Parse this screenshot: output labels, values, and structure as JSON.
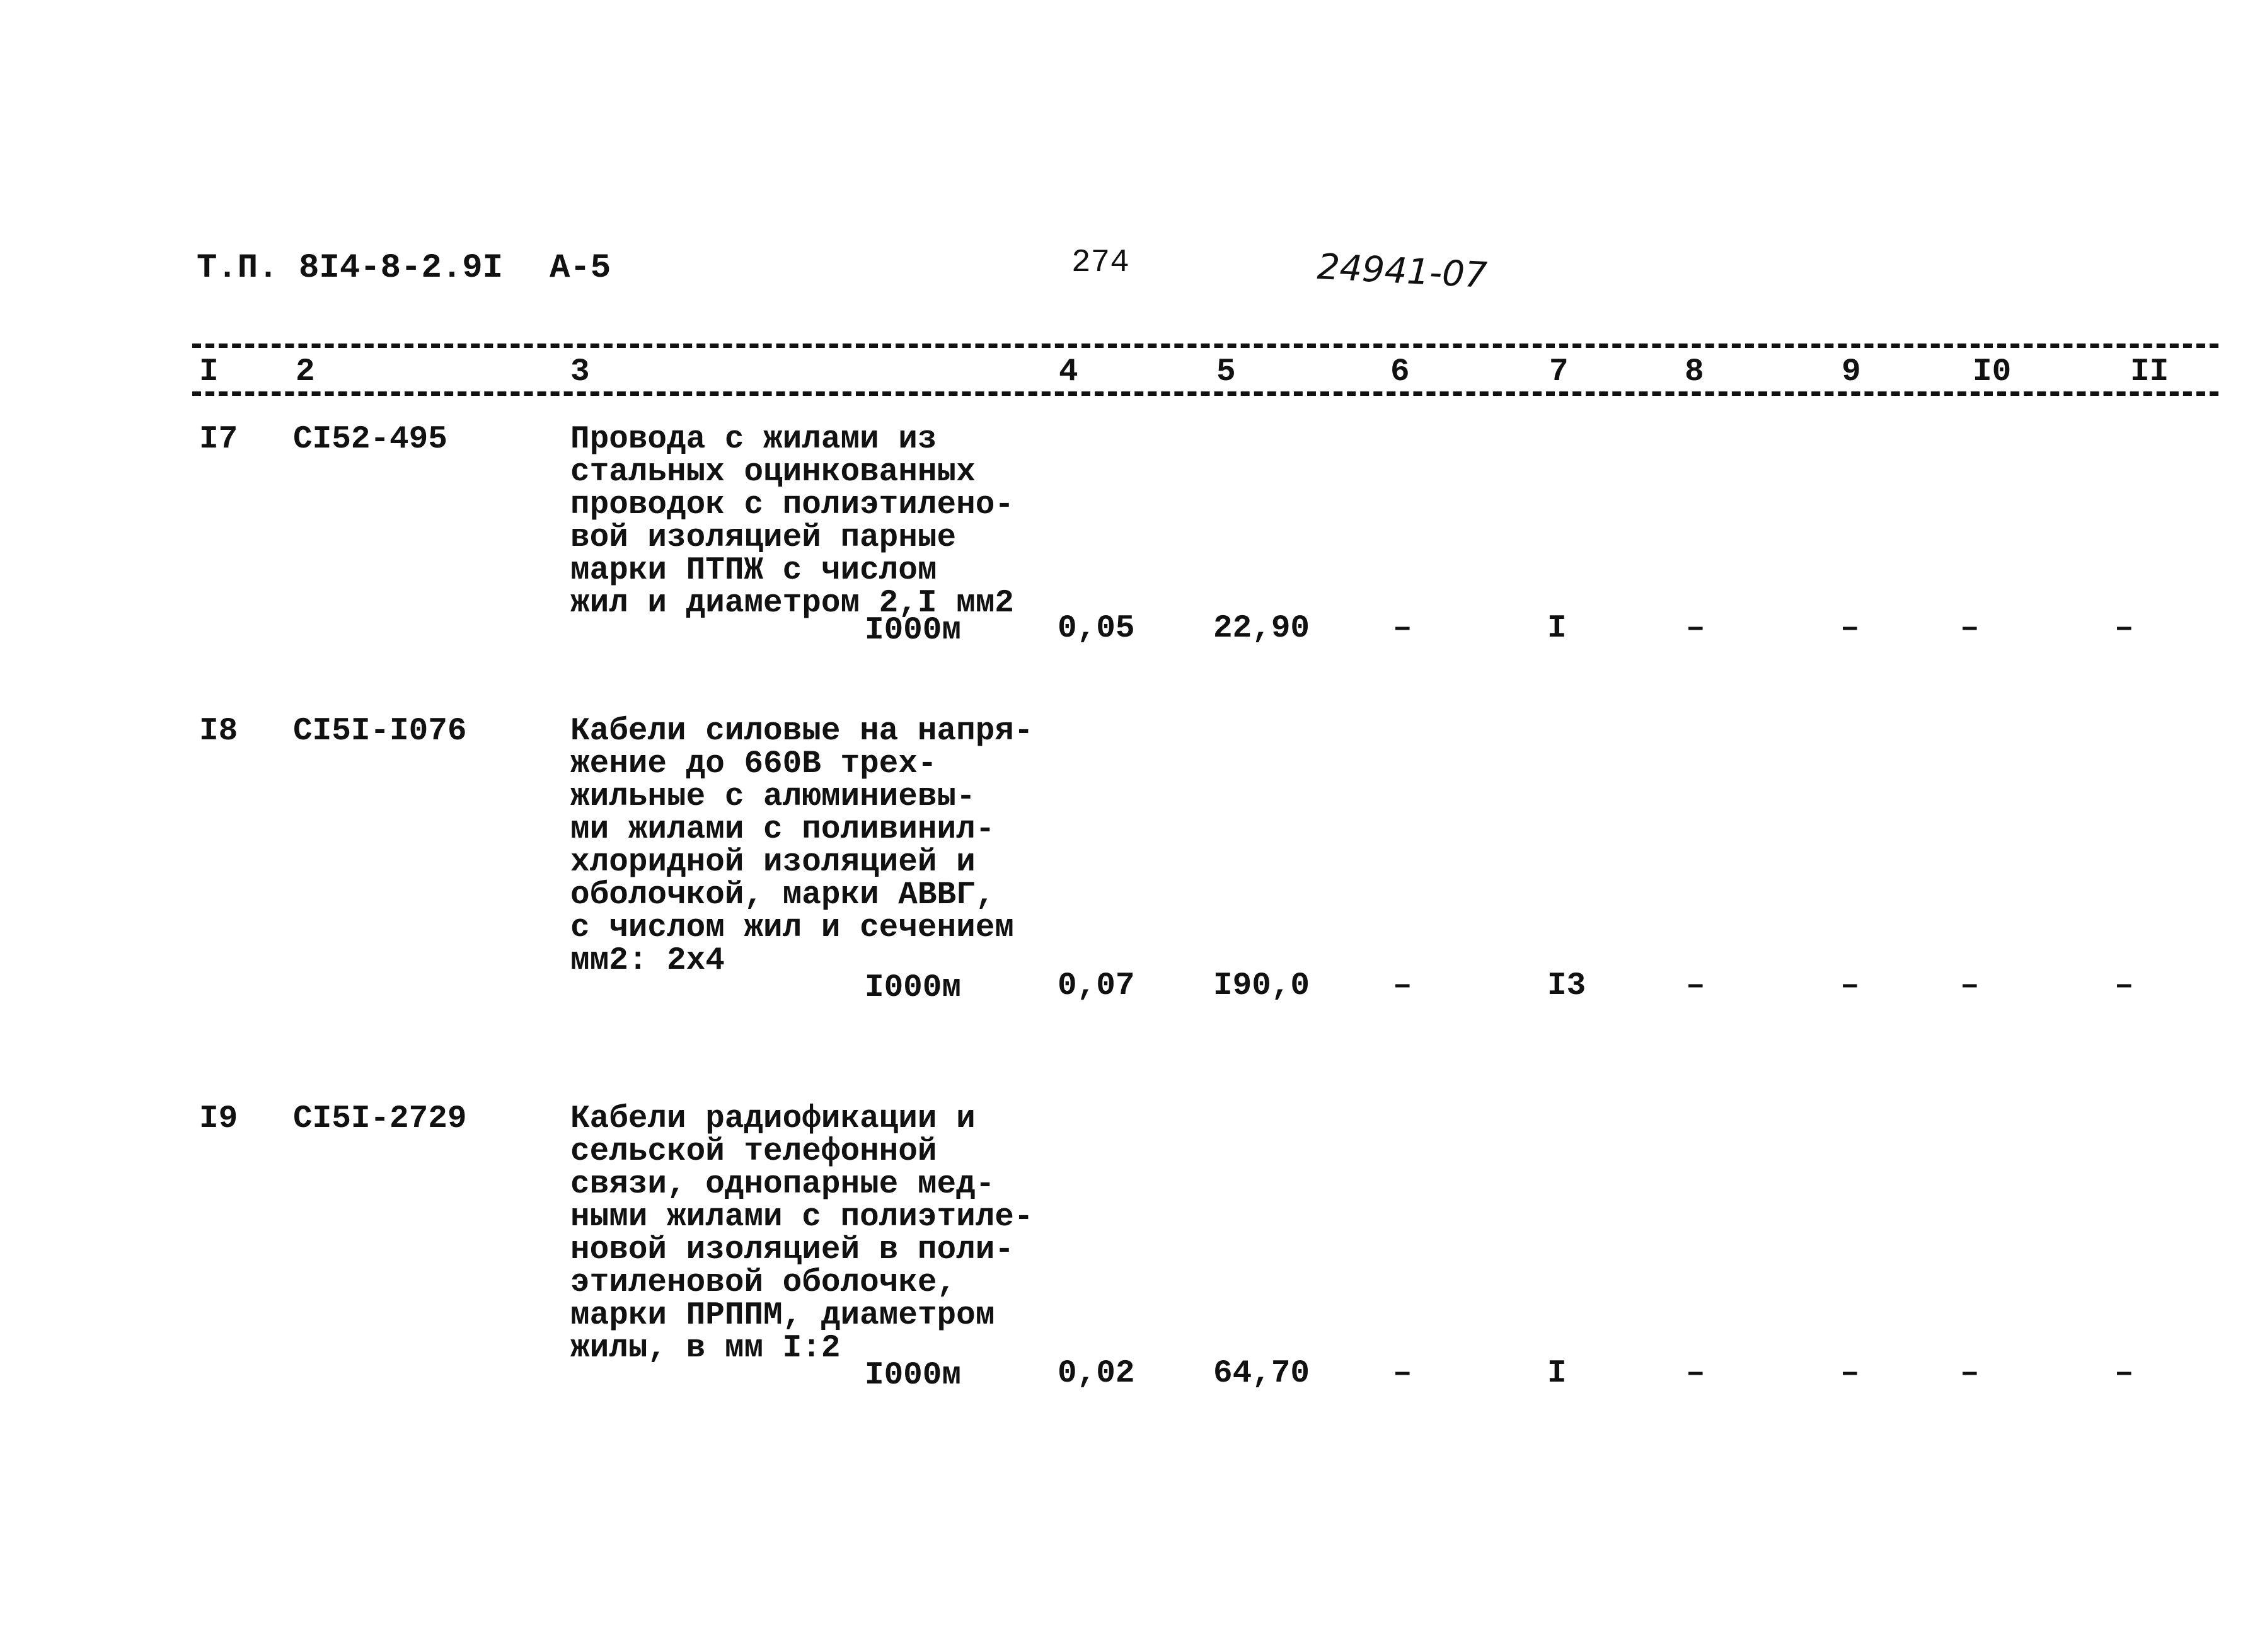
{
  "header": {
    "doc_ref": "Т.П. 8I4-8-2.9I",
    "album": "А-5",
    "page_number": "274",
    "handwritten_code": "24941-07"
  },
  "columns": [
    "I",
    "2",
    "3",
    "4",
    "5",
    "6",
    "7",
    "8",
    "9",
    "I0",
    "II"
  ],
  "rows": [
    {
      "num": "I7",
      "code": "CI52-495",
      "description": [
        "Провода с жилами из",
        "стальных оцинкованных",
        "проводок с полиэтилено-",
        "вой изоляцией парные",
        "марки ПТПЖ с числом",
        "жил и диаметром 2,I мм2"
      ],
      "unit": "I000м",
      "c4": "0,05",
      "c5": "22,90",
      "c6": "–",
      "c7": "I",
      "c8": "–",
      "c9": "–",
      "c10": "–",
      "c11": "–"
    },
    {
      "num": "I8",
      "code": "CI5I-I076",
      "description": [
        "Кабели силовые на напря-",
        "жение до 660В трех-",
        "жильные с алюминиевы-",
        "ми жилами с поливинил-",
        "хлоридной изоляцией и",
        "оболочкой, марки АВВГ,",
        "с числом жил и сечением",
        "мм2: 2х4"
      ],
      "unit": "I000м",
      "c4": "0,07",
      "c5": "I90,0",
      "c6": "–",
      "c7": "I3",
      "c8": "–",
      "c9": "–",
      "c10": "–",
      "c11": "–"
    },
    {
      "num": "I9",
      "code": "CI5I-2729",
      "description": [
        "Кабели радиофикации и",
        "сельской телефонной",
        "связи, однопарные мед-",
        "ными жилами с полиэтиле-",
        "новой изоляцией в поли-",
        "этиленовой оболочке,",
        "марки ПРППМ, диаметром",
        "жилы, в мм I:2"
      ],
      "unit": "I000м",
      "c4": "0,02",
      "c5": "64,70",
      "c6": "–",
      "c7": "I",
      "c8": "–",
      "c9": "–",
      "c10": "–",
      "c11": "–"
    }
  ]
}
